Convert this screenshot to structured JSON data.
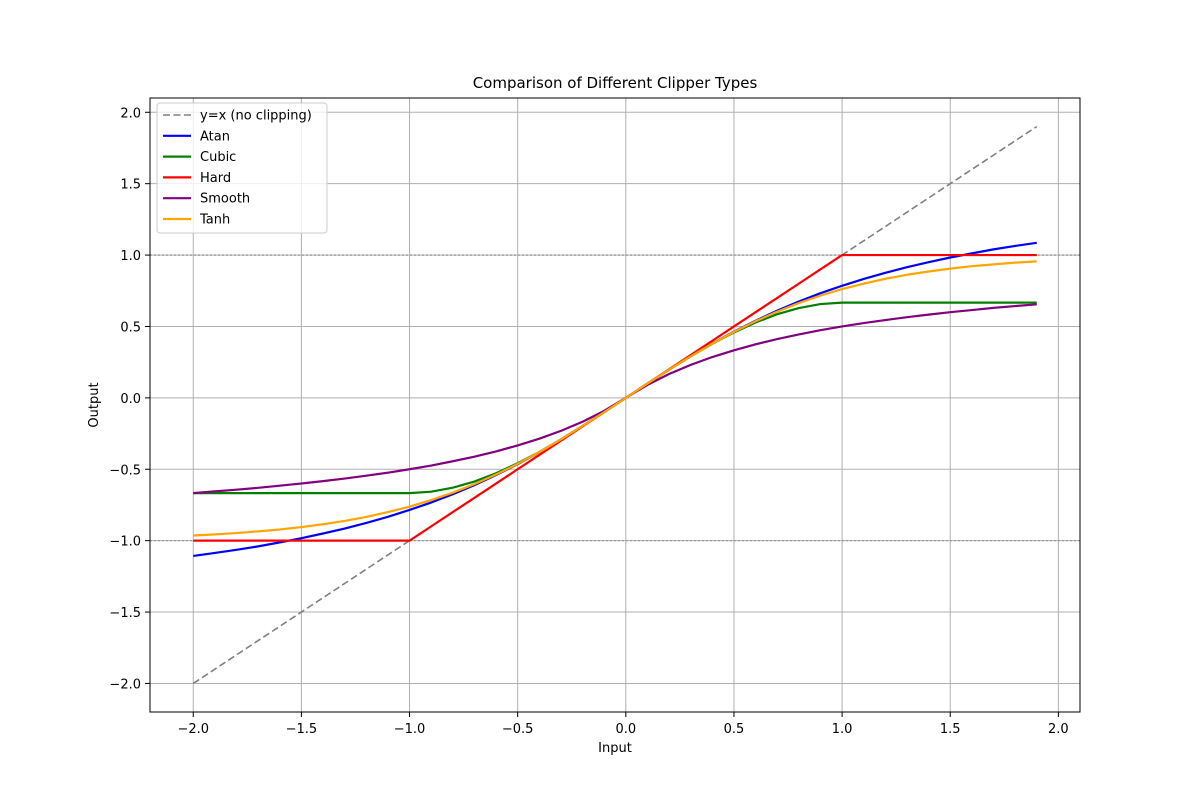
{
  "chart_data": {
    "type": "line",
    "title": "Comparison of Different Clipper Types",
    "xlabel": "Input",
    "ylabel": "Output",
    "xlim": [
      -2.2,
      2.1
    ],
    "ylim": [
      -2.2,
      2.1
    ],
    "xticks": [
      -2.0,
      -1.5,
      -1.0,
      -0.5,
      0.0,
      0.5,
      1.0,
      1.5,
      2.0
    ],
    "xtick_labels": [
      "−2.0",
      "−1.5",
      "−1.0",
      "−0.5",
      "0.0",
      "0.5",
      "1.0",
      "1.5",
      "2.0"
    ],
    "yticks": [
      -2.0,
      -1.5,
      -1.0,
      -0.5,
      0.0,
      0.5,
      1.0,
      1.5,
      2.0
    ],
    "ytick_labels": [
      "−2.0",
      "−1.5",
      "−1.0",
      "−0.5",
      "0.0",
      "0.5",
      "1.0",
      "1.5",
      "2.0"
    ],
    "grid": true,
    "legend_position": "upper-left",
    "reference_lines": [
      {
        "y": 1.0,
        "color": "#999999",
        "style": "dotted"
      },
      {
        "y": -1.0,
        "color": "#999999",
        "style": "dotted"
      }
    ],
    "x": [
      -2.0,
      -1.9,
      -1.8,
      -1.7,
      -1.6,
      -1.5,
      -1.4,
      -1.3,
      -1.2,
      -1.1,
      -1.0,
      -0.9,
      -0.8,
      -0.7,
      -0.6,
      -0.5,
      -0.4,
      -0.3,
      -0.2,
      -0.1,
      0.0,
      0.1,
      0.2,
      0.3,
      0.4,
      0.5,
      0.6,
      0.7,
      0.8,
      0.9,
      1.0,
      1.1,
      1.2,
      1.3,
      1.4,
      1.5,
      1.6,
      1.7,
      1.8,
      1.9
    ],
    "series": [
      {
        "name": "y=x (no clipping)",
        "color": "#808080",
        "style": "dashed",
        "values": [
          -2.0,
          -1.9,
          -1.8,
          -1.7,
          -1.6,
          -1.5,
          -1.4,
          -1.3,
          -1.2,
          -1.1,
          -1.0,
          -0.9,
          -0.8,
          -0.7,
          -0.6,
          -0.5,
          -0.4,
          -0.3,
          -0.2,
          -0.1,
          0.0,
          0.1,
          0.2,
          0.3,
          0.4,
          0.5,
          0.6,
          0.7,
          0.8,
          0.9,
          1.0,
          1.1,
          1.2,
          1.3,
          1.4,
          1.5,
          1.6,
          1.7,
          1.8,
          1.9
        ]
      },
      {
        "name": "Atan",
        "color": "#0000ff",
        "style": "solid",
        "values": [
          -1.107,
          -1.086,
          -1.064,
          -1.04,
          -1.012,
          -0.983,
          -0.95,
          -0.915,
          -0.876,
          -0.833,
          -0.785,
          -0.733,
          -0.675,
          -0.611,
          -0.54,
          -0.464,
          -0.381,
          -0.291,
          -0.197,
          -0.1,
          0.0,
          0.1,
          0.197,
          0.291,
          0.381,
          0.464,
          0.54,
          0.611,
          0.675,
          0.733,
          0.785,
          0.833,
          0.876,
          0.915,
          0.95,
          0.983,
          1.012,
          1.04,
          1.064,
          1.086
        ]
      },
      {
        "name": "Cubic",
        "color": "#008000",
        "style": "solid",
        "values": [
          -0.667,
          -0.667,
          -0.667,
          -0.667,
          -0.667,
          -0.667,
          -0.667,
          -0.667,
          -0.667,
          -0.667,
          -0.667,
          -0.657,
          -0.629,
          -0.586,
          -0.528,
          -0.458,
          -0.379,
          -0.291,
          -0.197,
          -0.1,
          0.0,
          0.1,
          0.197,
          0.291,
          0.379,
          0.458,
          0.528,
          0.586,
          0.629,
          0.657,
          0.667,
          0.667,
          0.667,
          0.667,
          0.667,
          0.667,
          0.667,
          0.667,
          0.667,
          0.667
        ]
      },
      {
        "name": "Hard",
        "color": "#ff0000",
        "style": "solid",
        "values": [
          -1.0,
          -1.0,
          -1.0,
          -1.0,
          -1.0,
          -1.0,
          -1.0,
          -1.0,
          -1.0,
          -1.0,
          -1.0,
          -0.9,
          -0.8,
          -0.7,
          -0.6,
          -0.5,
          -0.4,
          -0.3,
          -0.2,
          -0.1,
          0.0,
          0.1,
          0.2,
          0.3,
          0.4,
          0.5,
          0.6,
          0.7,
          0.8,
          0.9,
          1.0,
          1.0,
          1.0,
          1.0,
          1.0,
          1.0,
          1.0,
          1.0,
          1.0,
          1.0
        ]
      },
      {
        "name": "Smooth",
        "color": "#800080",
        "style": "solid",
        "values": [
          -0.667,
          -0.655,
          -0.643,
          -0.63,
          -0.615,
          -0.6,
          -0.583,
          -0.565,
          -0.545,
          -0.524,
          -0.5,
          -0.474,
          -0.444,
          -0.412,
          -0.375,
          -0.333,
          -0.286,
          -0.231,
          -0.167,
          -0.091,
          0.0,
          0.091,
          0.167,
          0.231,
          0.286,
          0.333,
          0.375,
          0.412,
          0.444,
          0.474,
          0.5,
          0.524,
          0.545,
          0.565,
          0.583,
          0.6,
          0.615,
          0.63,
          0.643,
          0.655
        ]
      },
      {
        "name": "Tanh",
        "color": "#ffa500",
        "style": "solid",
        "values": [
          -0.964,
          -0.956,
          -0.947,
          -0.935,
          -0.922,
          -0.905,
          -0.885,
          -0.862,
          -0.834,
          -0.8,
          -0.762,
          -0.716,
          -0.664,
          -0.604,
          -0.537,
          -0.462,
          -0.38,
          -0.291,
          -0.197,
          -0.1,
          0.0,
          0.1,
          0.197,
          0.291,
          0.38,
          0.462,
          0.537,
          0.604,
          0.664,
          0.716,
          0.762,
          0.8,
          0.834,
          0.862,
          0.885,
          0.905,
          0.922,
          0.935,
          0.947,
          0.956
        ]
      }
    ]
  }
}
